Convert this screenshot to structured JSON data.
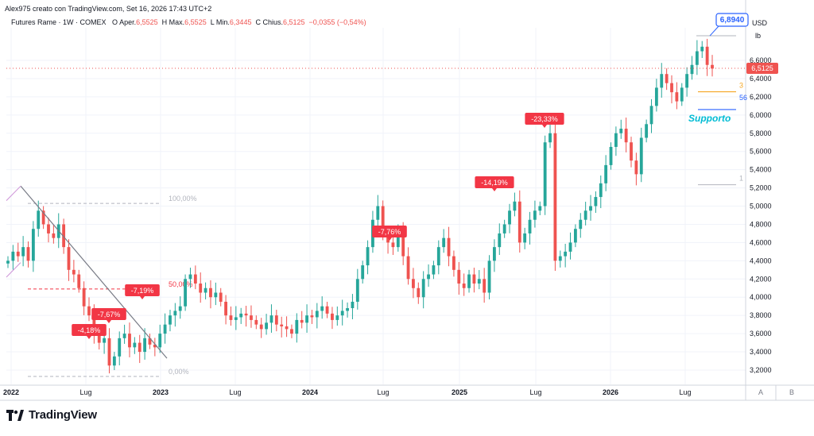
{
  "header": {
    "author_line": "Alex975 creato con TradingView.com, Set 16, 2026 17:43 UTC+2",
    "symbol": "Futures Rame · 1W · COMEX",
    "open_label": "O",
    "open_word": "Aper.",
    "open": "6,5525",
    "high_label": "H",
    "high_word": "Max.",
    "high": "6,5525",
    "low_label": "L",
    "low_word": "Min.",
    "low": "6,3445",
    "close_label": "C",
    "close_word": "Chius.",
    "close": "6,5125",
    "change": "−0,0355 (−0,54%)"
  },
  "axis": {
    "currency": "USD",
    "unit": "lb",
    "y_ticks": [
      "3,2000",
      "3,4000",
      "3,6000",
      "3,8000",
      "4,0000",
      "4,2000",
      "4,4000",
      "4,6000",
      "4,8000",
      "5,0000",
      "5,2000",
      "5,4000",
      "5,6000",
      "5,8000",
      "6,0000",
      "6,2000",
      "6,4000",
      "6,6000"
    ],
    "x_ticks": [
      "2022",
      "Lug",
      "2023",
      "Lug",
      "2024",
      "Lug",
      "2025",
      "Lug",
      "2026",
      "Lug"
    ],
    "scale_buttons": [
      "A",
      "B"
    ]
  },
  "badges": {
    "last_price": "6,5125",
    "high_marker": "6,8940"
  },
  "annotations": {
    "support": "Supporto",
    "fib_100": "100,00%",
    "fib_50": "50,00%",
    "fib_0": "0,00%",
    "partial_1": "3",
    "partial_2": "56",
    "partial_3": "1"
  },
  "drawdowns": [
    "-4,18%",
    "-7,67%",
    "-7,19%",
    "-7,76%",
    "-14,19%",
    "-23,33%"
  ],
  "chart_data": {
    "type": "candlestick",
    "title": "Futures Rame · 1W · COMEX",
    "ylim": [
      3.1,
      7.0
    ],
    "y_unit": "USD/lb",
    "x_range": [
      "2022-01",
      "2026-09"
    ],
    "colors": {
      "up": "#26a69a",
      "down": "#ef5350",
      "trendline": "#787b86",
      "support": "#2962ff",
      "orange": "#f5a623",
      "label": "#f23645"
    },
    "series": [
      {
        "name": "close",
        "values": [
          4.4,
          4.5,
          4.45,
          4.55,
          4.4,
          4.75,
          4.95,
          4.8,
          4.7,
          4.65,
          4.8,
          4.55,
          4.3,
          4.25,
          4.1,
          3.9,
          3.8,
          3.6,
          3.5,
          3.55,
          3.25,
          3.35,
          3.55,
          3.6,
          3.45,
          3.5,
          3.4,
          3.55,
          3.48,
          3.45,
          3.6,
          3.7,
          3.8,
          3.85,
          3.9,
          4.2,
          4.25,
          4.15,
          4.05,
          4.1,
          4.0,
          4.05,
          3.95,
          3.8,
          3.75,
          3.78,
          3.82,
          3.8,
          3.75,
          3.7,
          3.65,
          3.72,
          3.8,
          3.7,
          3.68,
          3.65,
          3.6,
          3.75,
          3.72,
          3.8,
          3.78,
          3.85,
          3.9,
          3.82,
          3.75,
          3.8,
          3.85,
          3.88,
          3.95,
          4.2,
          4.35,
          4.55,
          4.85,
          5.0,
          4.7,
          4.6,
          4.55,
          4.75,
          4.45,
          4.2,
          4.1,
          4.0,
          4.2,
          4.25,
          4.35,
          4.55,
          4.65,
          4.45,
          4.3,
          4.15,
          4.1,
          4.25,
          4.15,
          4.2,
          4.05,
          4.4,
          4.55,
          4.7,
          4.8,
          4.95,
          5.05,
          4.6,
          4.7,
          4.85,
          4.95,
          5.0,
          5.7,
          5.8,
          4.4,
          4.45,
          4.5,
          4.6,
          4.75,
          4.85,
          4.95,
          5.0,
          5.1,
          5.25,
          5.45,
          5.65,
          5.8,
          5.85,
          5.7,
          5.5,
          5.35,
          5.75,
          5.9,
          6.1,
          6.3,
          6.45,
          6.35,
          6.25,
          6.15,
          6.3,
          6.45,
          6.55,
          6.7,
          6.75,
          6.55,
          6.51
        ]
      }
    ],
    "drawdown_labels": [
      "-4,18%",
      "-7,67%",
      "-7,19%",
      "-7,76%",
      "-14,19%",
      "-23,33%"
    ],
    "fib_levels": {
      "100%": 5.03,
      "50%": 4.09,
      "0%": 3.13
    },
    "support_level": 6.06,
    "last_close": 6.5125,
    "high_marker": 6.894
  }
}
